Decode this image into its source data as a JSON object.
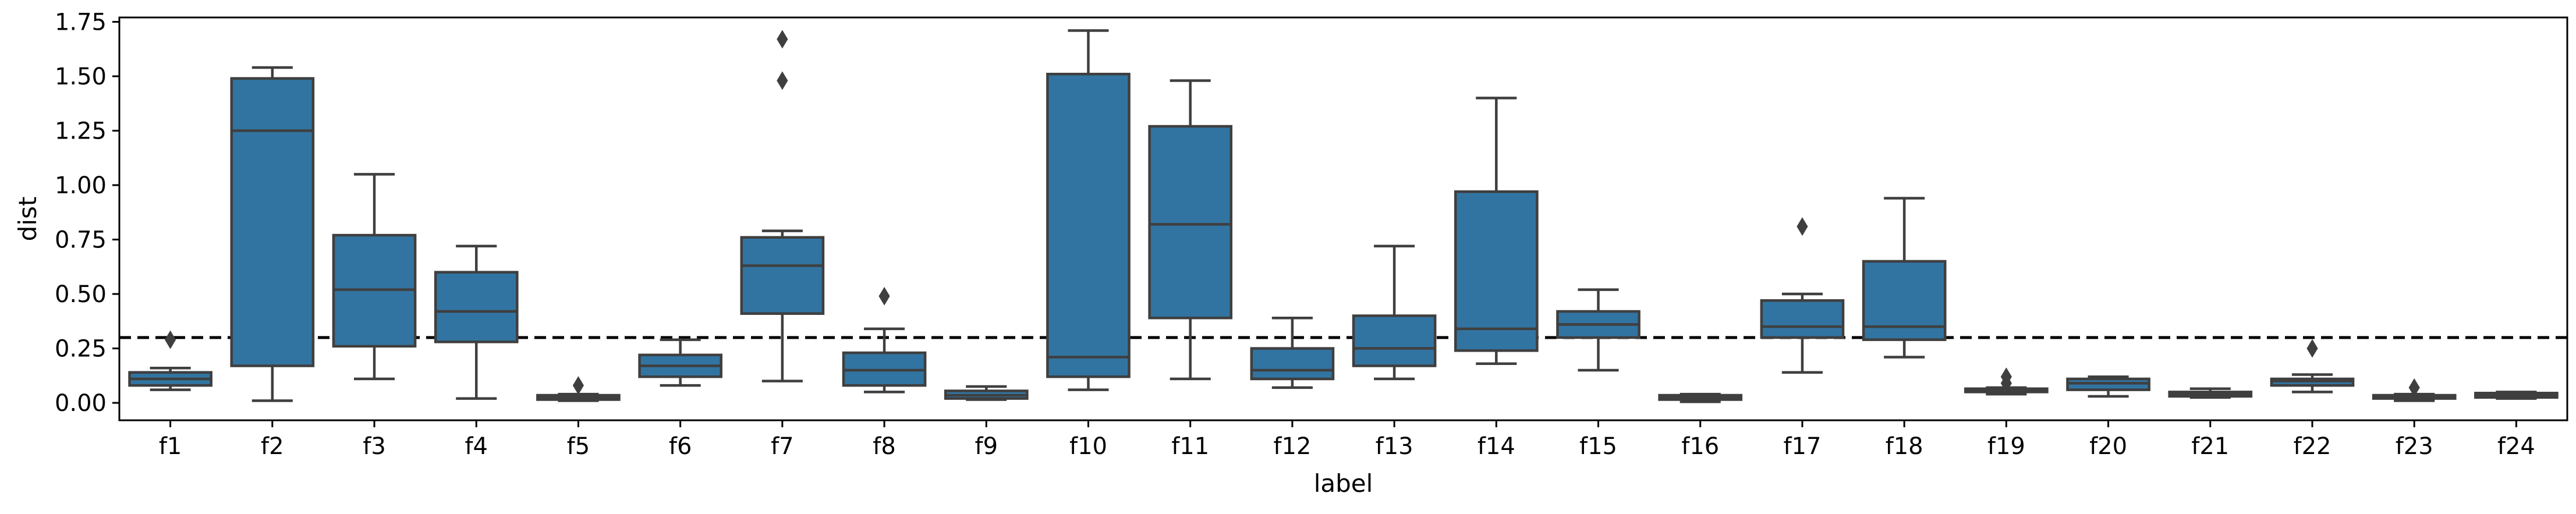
{
  "chart_data": {
    "type": "box",
    "xlabel": "label",
    "ylabel": "dist",
    "ylim": [
      -0.08,
      1.77
    ],
    "yticks": [
      0.0,
      0.25,
      0.5,
      0.75,
      1.0,
      1.25,
      1.5,
      1.75
    ],
    "ytick_labels": [
      "0.00",
      "0.25",
      "0.50",
      "0.75",
      "1.00",
      "1.25",
      "1.50",
      "1.75"
    ],
    "reference_line": {
      "y": 0.3,
      "style": "dashed",
      "color": "#000000"
    },
    "box_color": "#3274a1",
    "line_color": "#3f3f3f",
    "categories": [
      "f1",
      "f2",
      "f3",
      "f4",
      "f5",
      "f6",
      "f7",
      "f8",
      "f9",
      "f10",
      "f11",
      "f12",
      "f13",
      "f14",
      "f15",
      "f16",
      "f17",
      "f18",
      "f19",
      "f20",
      "f21",
      "f22",
      "f23",
      "f24"
    ],
    "boxes": [
      {
        "label": "f1",
        "whislo": 0.06,
        "q1": 0.08,
        "med": 0.11,
        "q3": 0.14,
        "whishi": 0.16,
        "fliers": [
          0.29
        ]
      },
      {
        "label": "f2",
        "whislo": 0.01,
        "q1": 0.17,
        "med": 1.25,
        "q3": 1.49,
        "whishi": 1.54,
        "fliers": []
      },
      {
        "label": "f3",
        "whislo": 0.11,
        "q1": 0.26,
        "med": 0.52,
        "q3": 0.77,
        "whishi": 1.05,
        "fliers": []
      },
      {
        "label": "f4",
        "whislo": 0.02,
        "q1": 0.28,
        "med": 0.42,
        "q3": 0.6,
        "whishi": 0.72,
        "fliers": []
      },
      {
        "label": "f5",
        "whislo": 0.01,
        "q1": 0.015,
        "med": 0.025,
        "q3": 0.035,
        "whishi": 0.04,
        "fliers": [
          0.08
        ]
      },
      {
        "label": "f6",
        "whislo": 0.08,
        "q1": 0.12,
        "med": 0.17,
        "q3": 0.22,
        "whishi": 0.29,
        "fliers": []
      },
      {
        "label": "f7",
        "whislo": 0.1,
        "q1": 0.41,
        "med": 0.63,
        "q3": 0.76,
        "whishi": 0.79,
        "fliers": [
          1.48,
          1.67
        ]
      },
      {
        "label": "f8",
        "whislo": 0.05,
        "q1": 0.08,
        "med": 0.15,
        "q3": 0.23,
        "whishi": 0.34,
        "fliers": [
          0.49
        ]
      },
      {
        "label": "f9",
        "whislo": 0.015,
        "q1": 0.02,
        "med": 0.035,
        "q3": 0.055,
        "whishi": 0.075,
        "fliers": []
      },
      {
        "label": "f10",
        "whislo": 0.06,
        "q1": 0.12,
        "med": 0.21,
        "q3": 1.51,
        "whishi": 1.71,
        "fliers": []
      },
      {
        "label": "f11",
        "whislo": 0.11,
        "q1": 0.39,
        "med": 0.82,
        "q3": 1.27,
        "whishi": 1.48,
        "fliers": []
      },
      {
        "label": "f12",
        "whislo": 0.07,
        "q1": 0.11,
        "med": 0.15,
        "q3": 0.25,
        "whishi": 0.39,
        "fliers": []
      },
      {
        "label": "f13",
        "whislo": 0.11,
        "q1": 0.17,
        "med": 0.25,
        "q3": 0.4,
        "whishi": 0.72,
        "fliers": []
      },
      {
        "label": "f14",
        "whislo": 0.18,
        "q1": 0.24,
        "med": 0.34,
        "q3": 0.97,
        "whishi": 1.4,
        "fliers": []
      },
      {
        "label": "f15",
        "whislo": 0.15,
        "q1": 0.3,
        "med": 0.36,
        "q3": 0.42,
        "whishi": 0.52,
        "fliers": []
      },
      {
        "label": "f16",
        "whislo": 0.005,
        "q1": 0.015,
        "med": 0.025,
        "q3": 0.035,
        "whishi": 0.04,
        "fliers": []
      },
      {
        "label": "f17",
        "whislo": 0.14,
        "q1": 0.3,
        "med": 0.35,
        "q3": 0.47,
        "whishi": 0.5,
        "fliers": [
          0.81
        ]
      },
      {
        "label": "f18",
        "whislo": 0.21,
        "q1": 0.29,
        "med": 0.35,
        "q3": 0.65,
        "whishi": 0.94,
        "fliers": []
      },
      {
        "label": "f19",
        "whislo": 0.04,
        "q1": 0.05,
        "med": 0.055,
        "q3": 0.065,
        "whishi": 0.07,
        "fliers": [
          0.09,
          0.12
        ]
      },
      {
        "label": "f20",
        "whislo": 0.03,
        "q1": 0.06,
        "med": 0.09,
        "q3": 0.11,
        "whishi": 0.12,
        "fliers": []
      },
      {
        "label": "f21",
        "whislo": 0.025,
        "q1": 0.03,
        "med": 0.04,
        "q3": 0.05,
        "whishi": 0.065,
        "fliers": []
      },
      {
        "label": "f22",
        "whislo": 0.05,
        "q1": 0.08,
        "med": 0.1,
        "q3": 0.11,
        "whishi": 0.13,
        "fliers": [
          0.25
        ]
      },
      {
        "label": "f23",
        "whislo": 0.01,
        "q1": 0.02,
        "med": 0.025,
        "q3": 0.035,
        "whishi": 0.04,
        "fliers": [
          0.07
        ]
      },
      {
        "label": "f24",
        "whislo": 0.02,
        "q1": 0.025,
        "med": 0.035,
        "q3": 0.045,
        "whishi": 0.05,
        "fliers": []
      }
    ]
  }
}
